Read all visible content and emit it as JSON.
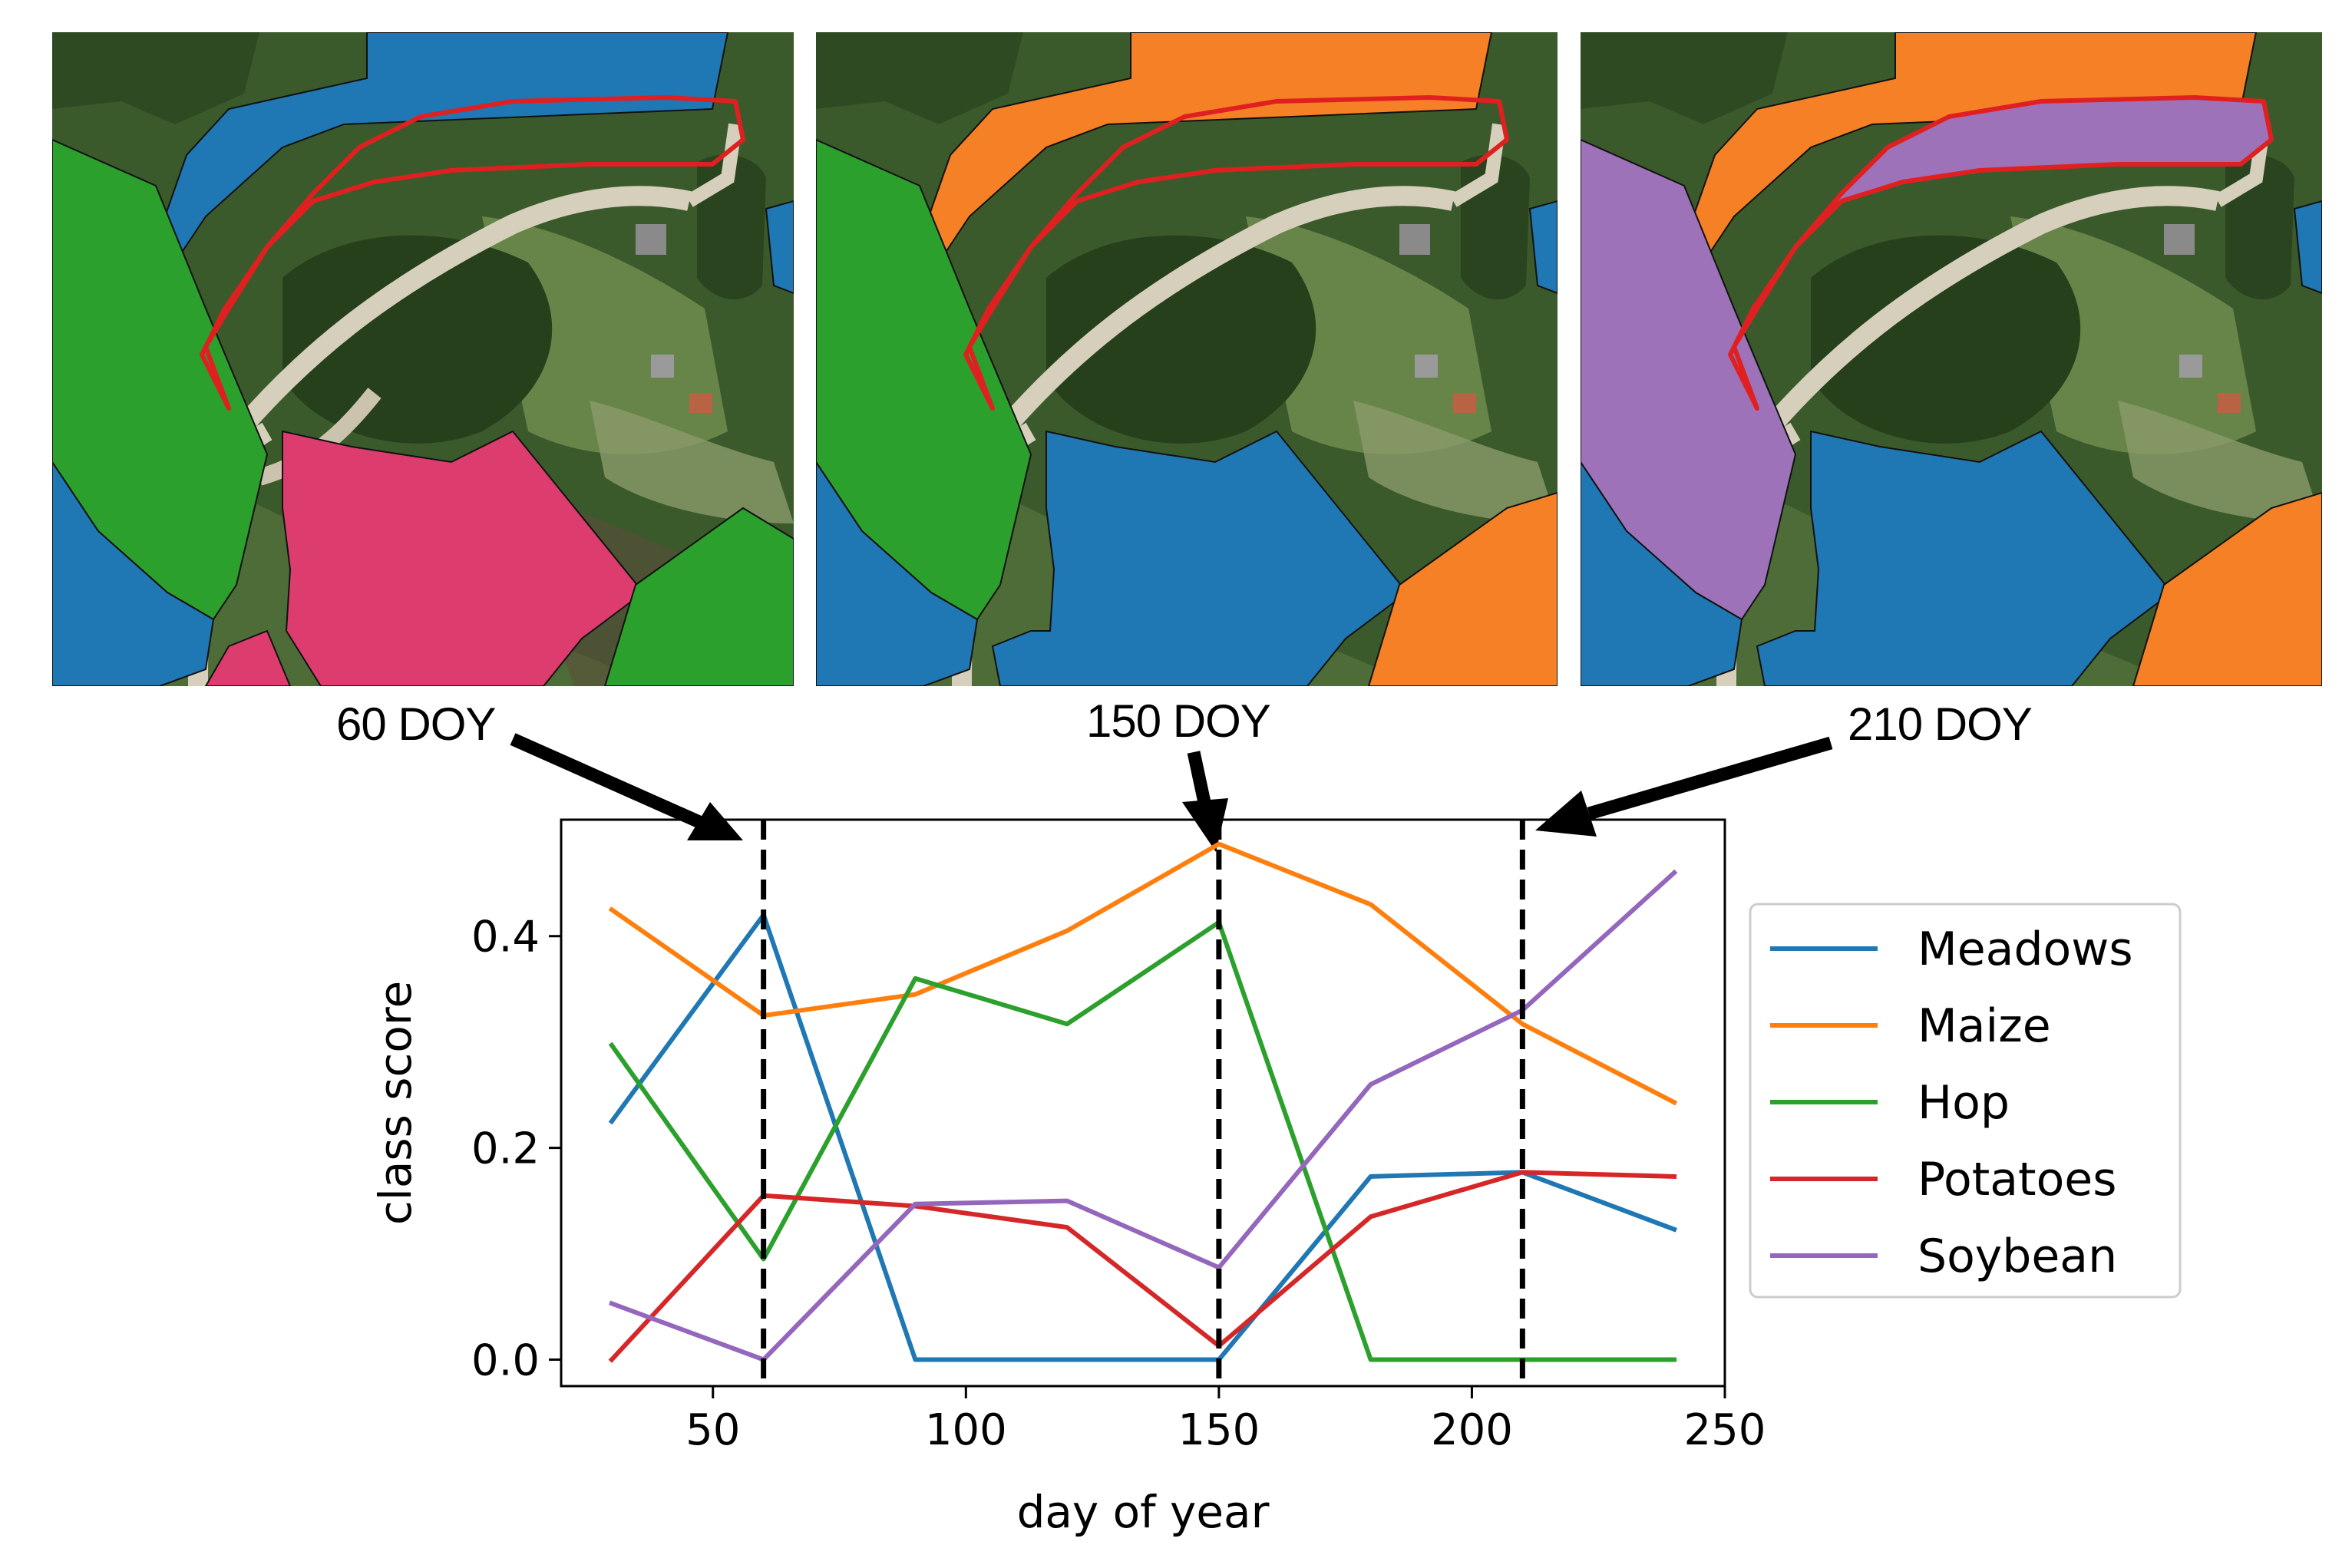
{
  "maps": [
    {
      "doy_label": "60 DOY"
    },
    {
      "doy_label": "150 DOY"
    },
    {
      "doy_label": "210 DOY"
    }
  ],
  "class_colors": {
    "Meadows": "#1f77b4",
    "Maize": "#f58025",
    "Hop": "#2ca02c",
    "Potatoes": "#d62728",
    "Soybean": "#9d72b8",
    "Other": "#dc3c6e",
    "highlight": "#e02020"
  },
  "chart_data": {
    "type": "line",
    "title": "",
    "xlabel": "day of year",
    "ylabel": "class score",
    "xlim": [
      20,
      250
    ],
    "ylim": [
      -0.025,
      0.51
    ],
    "xticks": [
      50,
      100,
      150,
      200,
      250
    ],
    "yticks": [
      0.0,
      0.2,
      0.4
    ],
    "xtick_labels": [
      "50",
      "100",
      "150",
      "200",
      "250"
    ],
    "ytick_labels": [
      "0.0",
      "0.2",
      "0.4"
    ],
    "x": [
      30,
      60,
      90,
      120,
      150,
      180,
      210,
      240
    ],
    "series": [
      {
        "name": "Meadows",
        "color": "#1f77b4",
        "values": [
          0.225,
          0.42,
          0.0,
          0.0,
          0.0,
          0.173,
          0.177,
          0.123
        ]
      },
      {
        "name": "Maize",
        "color": "#ff7f0e",
        "values": [
          0.425,
          0.325,
          0.345,
          0.405,
          0.487,
          0.43,
          0.317,
          0.243
        ]
      },
      {
        "name": "Hop",
        "color": "#2ca02c",
        "values": [
          0.297,
          0.095,
          0.36,
          0.317,
          0.413,
          0.0,
          0.0,
          0.0
        ]
      },
      {
        "name": "Potatoes",
        "color": "#d62728",
        "values": [
          0.0,
          0.155,
          0.145,
          0.125,
          0.013,
          0.135,
          0.177,
          0.173
        ]
      },
      {
        "name": "Soybean",
        "color": "#9467bd",
        "values": [
          0.053,
          0.0,
          0.147,
          0.15,
          0.087,
          0.26,
          0.33,
          0.46
        ]
      }
    ],
    "vlines": [
      60,
      150,
      210
    ],
    "legend_position": "right"
  }
}
